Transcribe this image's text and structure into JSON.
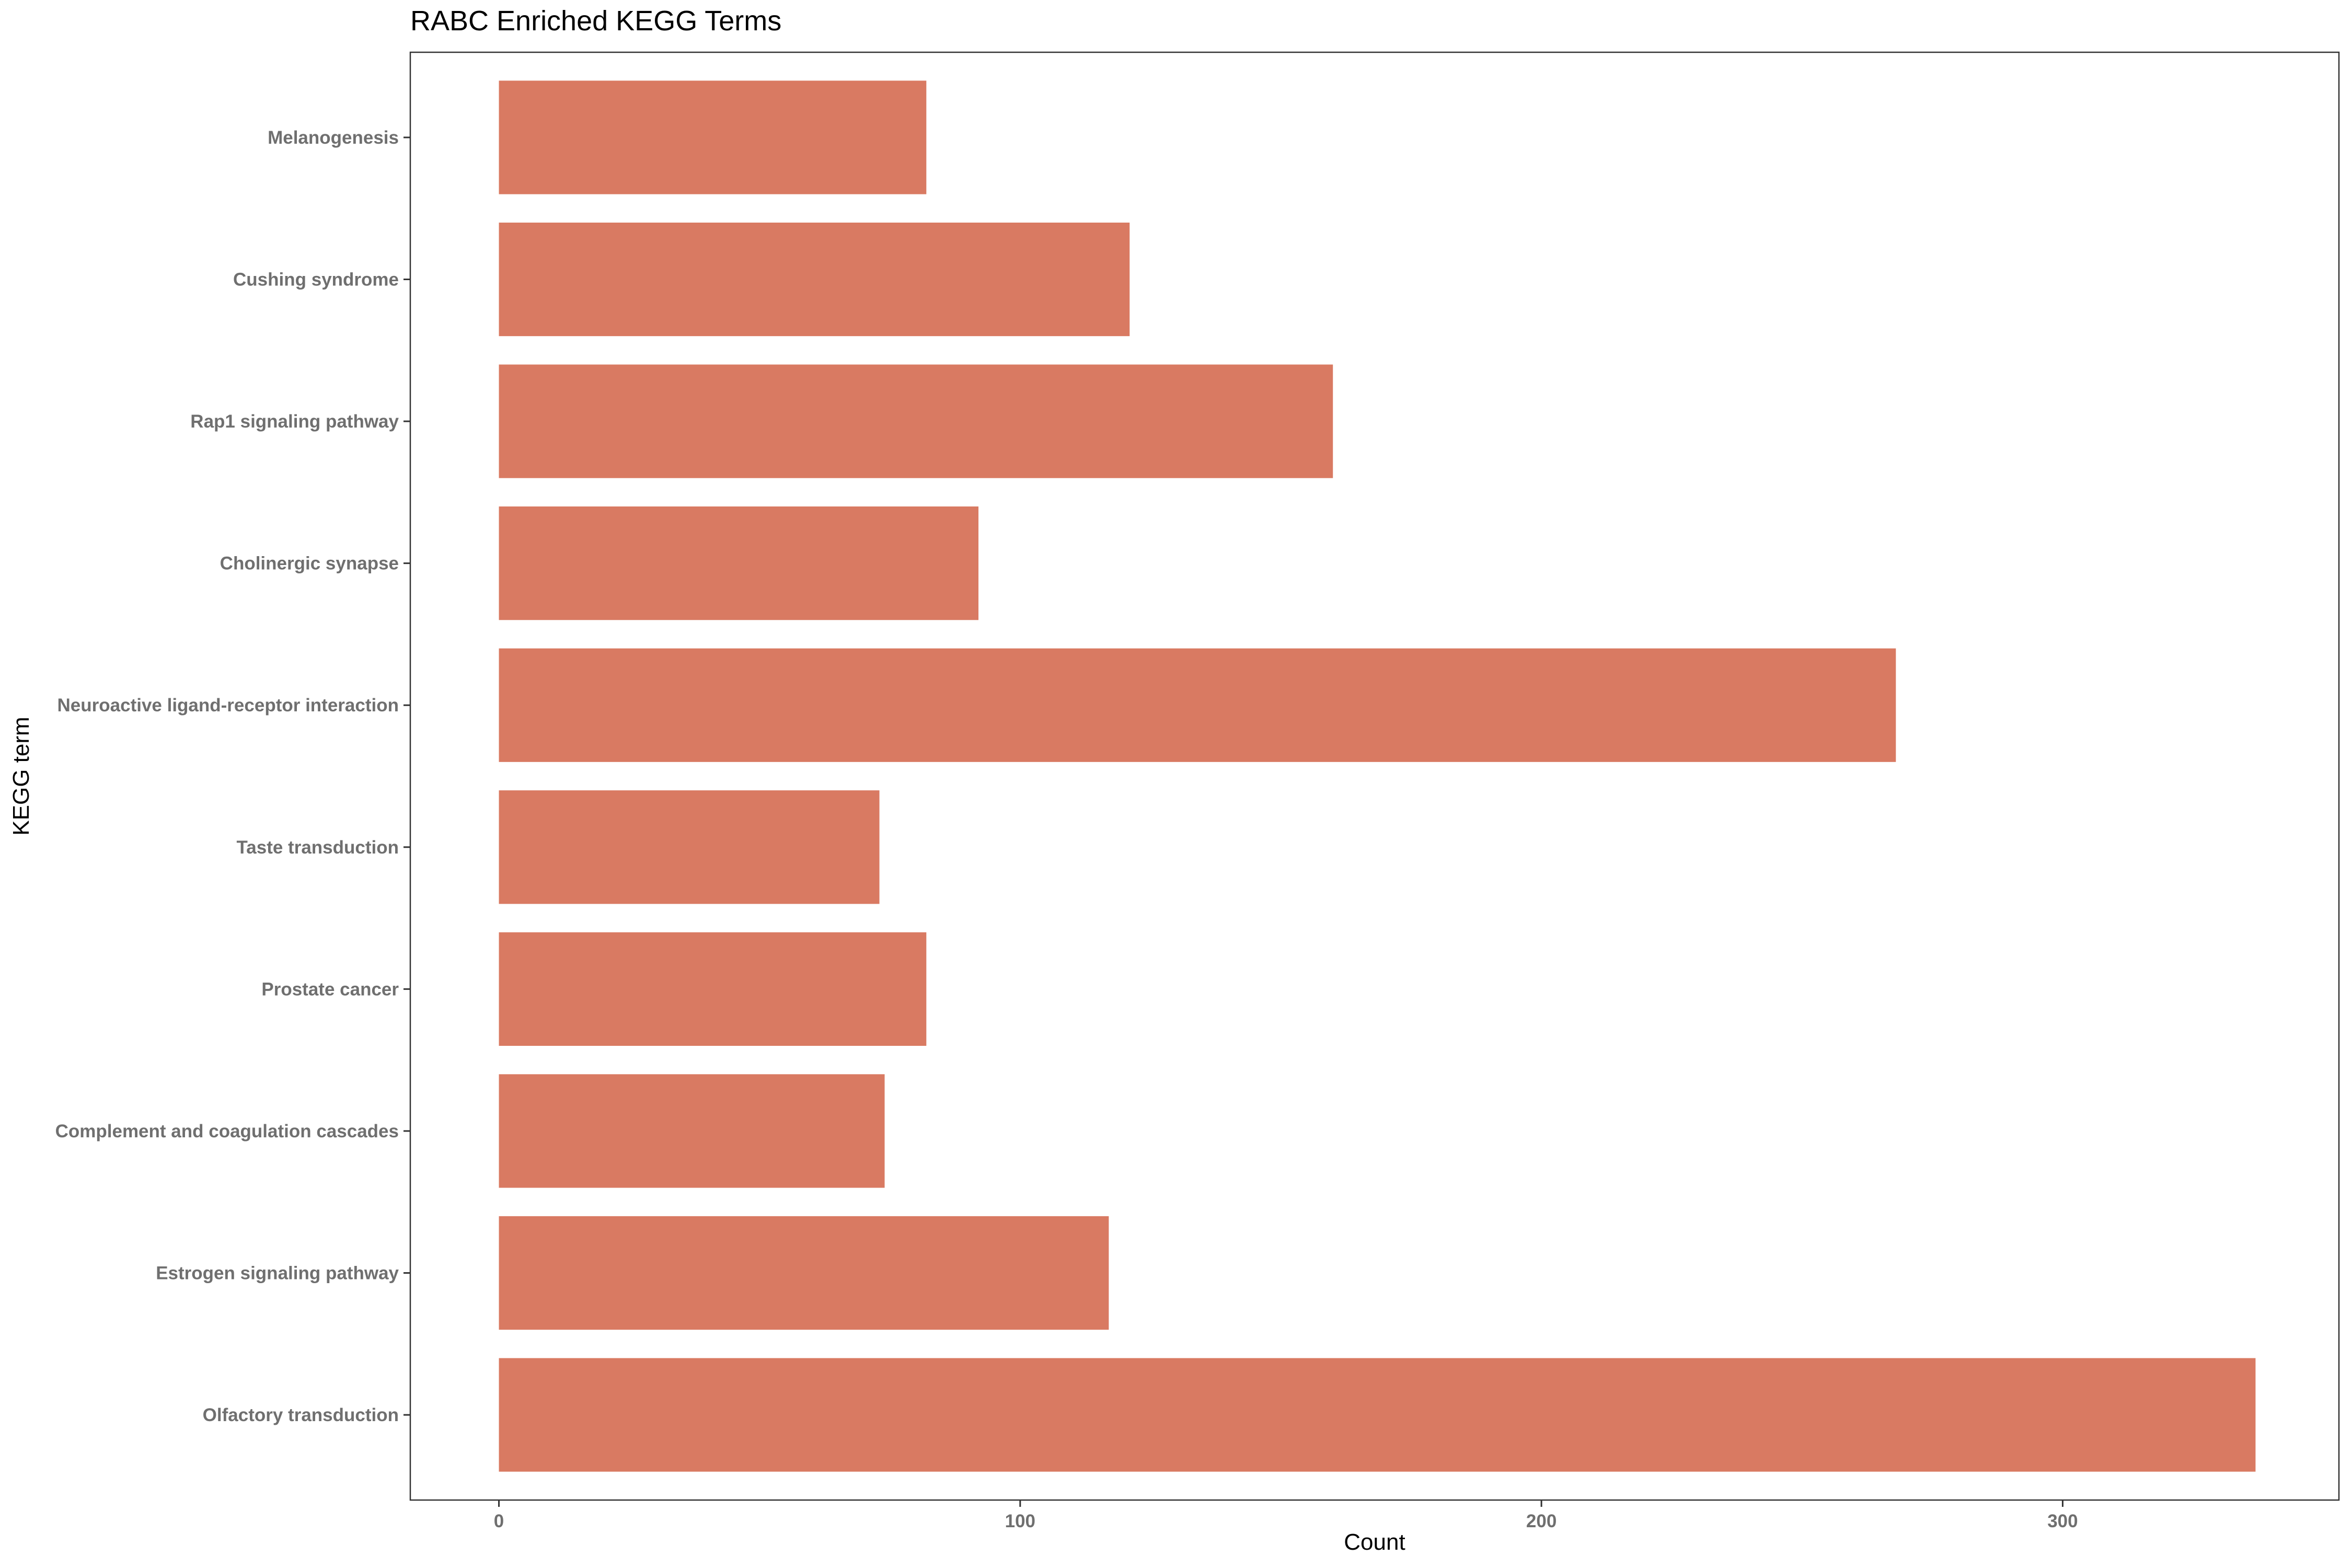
{
  "chart_data": {
    "type": "bar",
    "orientation": "horizontal",
    "title": "RABC Enriched KEGG Terms",
    "xlabel": "Count",
    "ylabel": "KEGG term",
    "categories": [
      "Olfactory transduction",
      "Estrogen signaling pathway",
      "Complement and coagulation cascades",
      "Prostate cancer",
      "Taste transduction",
      "Neuroactive ligand-receptor interaction",
      "Cholinergic synapse",
      "Rap1 signaling pathway",
      "Cushing syndrome",
      "Melanogenesis"
    ],
    "values": [
      337,
      117,
      74,
      82,
      73,
      268,
      92,
      160,
      121,
      82
    ],
    "xlim": [
      -17,
      353
    ],
    "xticks": [
      0,
      100,
      200,
      300
    ],
    "bar_color": "#d97a62",
    "grid": false,
    "legend": "none"
  }
}
